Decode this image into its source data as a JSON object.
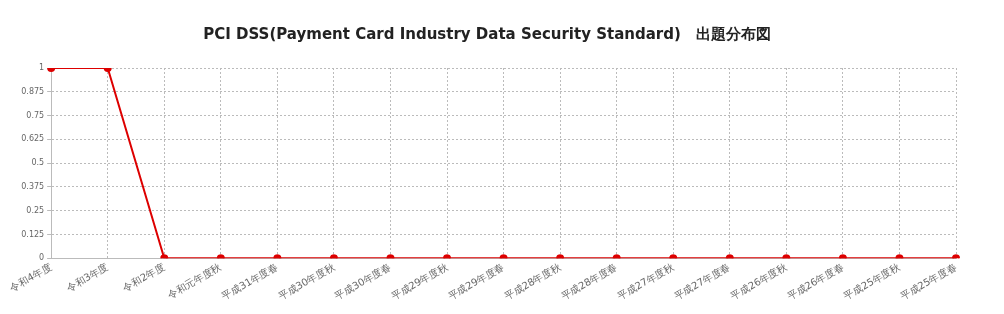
{
  "chart_data": {
    "type": "line",
    "title": "PCI DSS(Payment Card Industry Data Security Standard)　出題分布図",
    "categories": [
      "令和4年度",
      "令和3年度",
      "令和2年度",
      "令和元年度秋",
      "平成31年度春",
      "平成30年度秋",
      "平成30年度春",
      "平成29年度秋",
      "平成29年度春",
      "平成28年度秋",
      "平成28年度春",
      "平成27年度秋",
      "平成27年度春",
      "平成26年度秋",
      "平成26年度春",
      "平成25年度秋",
      "平成25年度春"
    ],
    "series": [
      {
        "color": "#dd0000",
        "values": [
          1,
          1,
          0,
          0,
          0,
          0,
          0,
          0,
          0,
          0,
          0,
          0,
          0,
          0,
          0,
          0,
          0
        ]
      }
    ],
    "ylim": [
      0,
      1
    ],
    "yticks": [
      0,
      0.125,
      0.25,
      0.375,
      0.5,
      0.625,
      0.75,
      0.875,
      1
    ],
    "grid": true,
    "legend": false,
    "marker": "circle",
    "line_style": "solid"
  }
}
